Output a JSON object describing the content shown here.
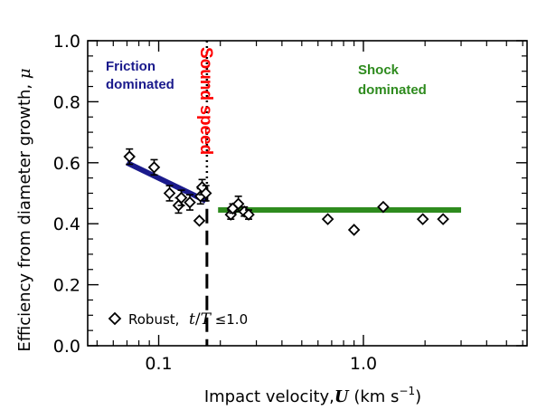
{
  "chart_data": {
    "type": "scatter",
    "xscale": "log",
    "xlim": [
      0.045,
      6.3
    ],
    "ylim": [
      0.0,
      1.0
    ],
    "xlabel": "Impact velocity, U (km s⁻¹)",
    "xlabel_parts": {
      "prefix": "Impact velocity,",
      "var": "U",
      "units_open": " (km s",
      "units_sup": "−1",
      "units_close": ")"
    },
    "ylabel": "Efficiency from diameter growth, μ",
    "ylabel_parts": {
      "text": "Efficiency from diameter growth, ",
      "var": "μ"
    },
    "xticks": [
      {
        "value": 0.1,
        "label": "0.1"
      },
      {
        "value": 1.0,
        "label": "1.0"
      }
    ],
    "xminorticks": [
      0.05,
      0.06,
      0.07,
      0.08,
      0.09,
      0.2,
      0.3,
      0.4,
      0.5,
      0.6,
      0.7,
      0.8,
      0.9,
      2,
      3,
      4,
      5,
      6
    ],
    "yticks": [
      {
        "value": 0.0,
        "label": "0.0"
      },
      {
        "value": 0.2,
        "label": "0.2"
      },
      {
        "value": 0.4,
        "label": "0.4"
      },
      {
        "value": 0.6,
        "label": "0.6"
      },
      {
        "value": 0.8,
        "label": "0.8"
      },
      {
        "value": 1.0,
        "label": "1.0"
      }
    ],
    "yminorticks": [
      0.05,
      0.1,
      0.15,
      0.25,
      0.3,
      0.35,
      0.45,
      0.5,
      0.55,
      0.65,
      0.7,
      0.75,
      0.85,
      0.9,
      0.95
    ],
    "series": [
      {
        "marker": "diamond",
        "points": [
          {
            "x": 0.072,
            "y": 0.62,
            "err": 0.025
          },
          {
            "x": 0.095,
            "y": 0.585,
            "err": 0.025
          },
          {
            "x": 0.113,
            "y": 0.5,
            "err": 0.025
          },
          {
            "x": 0.125,
            "y": 0.46,
            "err": 0.025
          },
          {
            "x": 0.129,
            "y": 0.485,
            "err": 0.025
          },
          {
            "x": 0.142,
            "y": 0.47,
            "err": 0.025
          },
          {
            "x": 0.158,
            "y": 0.41,
            "err": 0.0
          },
          {
            "x": 0.16,
            "y": 0.49,
            "err": 0.025
          },
          {
            "x": 0.163,
            "y": 0.52,
            "err": 0.025
          },
          {
            "x": 0.17,
            "y": 0.5,
            "err": 0.025
          },
          {
            "x": 0.225,
            "y": 0.43,
            "err": 0.015
          },
          {
            "x": 0.23,
            "y": 0.45,
            "err": 0.015
          },
          {
            "x": 0.245,
            "y": 0.465,
            "err": 0.025
          },
          {
            "x": 0.262,
            "y": 0.44,
            "err": 0.015
          },
          {
            "x": 0.275,
            "y": 0.43,
            "err": 0.015
          },
          {
            "x": 0.67,
            "y": 0.415,
            "err": 0.0
          },
          {
            "x": 0.9,
            "y": 0.38,
            "err": 0.0
          },
          {
            "x": 1.25,
            "y": 0.455,
            "err": 0.0
          },
          {
            "x": 1.95,
            "y": 0.415,
            "err": 0.0
          },
          {
            "x": 2.45,
            "y": 0.415,
            "err": 0.0
          }
        ]
      }
    ],
    "fits": [
      {
        "color": "#1a1a8c",
        "x": [
          0.07,
          0.17
        ],
        "y": [
          0.6,
          0.475
        ]
      },
      {
        "color": "#2e8b1e",
        "x": [
          0.195,
          3.0
        ],
        "y": [
          0.445,
          0.445
        ]
      }
    ],
    "vlines": [
      {
        "x": 0.172,
        "style": "dashed",
        "label": "Sound speed",
        "color": "#ff0000"
      }
    ],
    "annotations": [
      {
        "lines": [
          "Friction",
          "dominated"
        ],
        "color": "#1a1a8c"
      },
      {
        "lines": [
          "Shock",
          "dominated"
        ],
        "color": "#2e8b1e"
      }
    ],
    "legend": {
      "label": "Robust,",
      "expr": {
        "num": "t",
        "sep": "/",
        "den": "T",
        "rel": " ≤1.0"
      },
      "position": "bottom-left"
    }
  }
}
